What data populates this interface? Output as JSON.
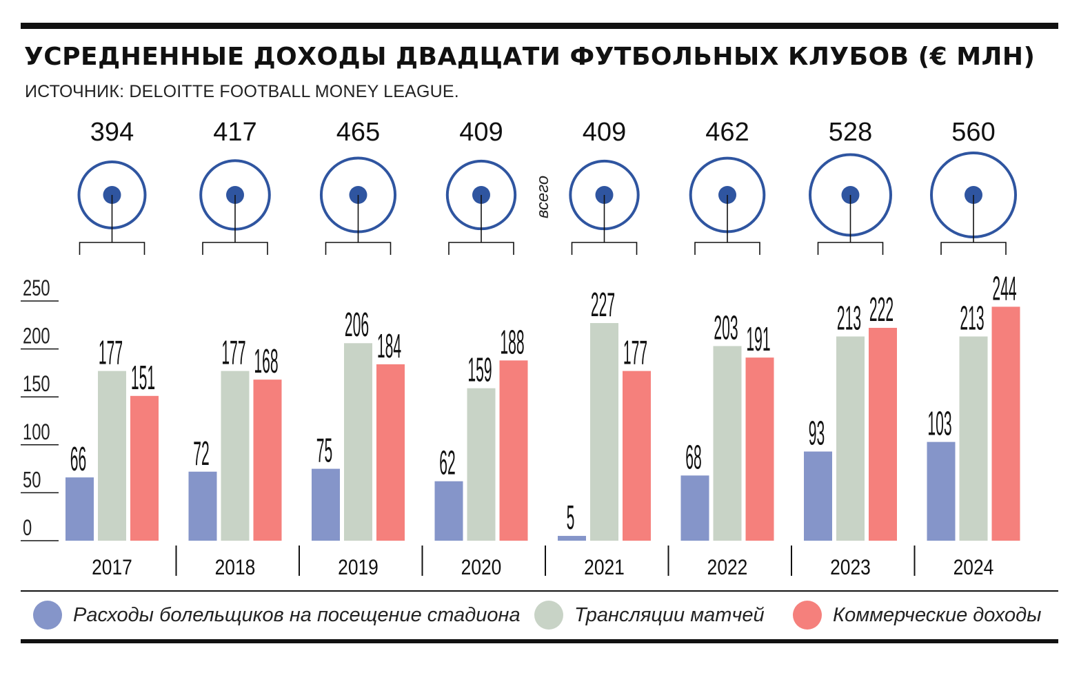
{
  "title": "УСРЕДНЕННЫЕ ДОХОДЫ ДВАДЦАТИ ФУТБОЛЬНЫХ КЛУБОВ (€ МЛН)",
  "source": "ИСТОЧНИК: DELOITTE FOOTBALL MONEY LEAGUE.",
  "total_label": "всего",
  "colors": {
    "stadium": "#8595c9",
    "broadcast": "#c8d3c6",
    "commercial": "#f5807c",
    "total": "#2f55a0",
    "ink": "#111111"
  },
  "legend": [
    {
      "key": "stadium",
      "label": "Расходы болельщиков на посещение стадиона"
    },
    {
      "key": "broadcast",
      "label": "Трансляции матчей"
    },
    {
      "key": "commercial",
      "label": "Коммерческие доходы"
    }
  ],
  "chart_data": {
    "type": "bar",
    "title": "УСРЕДНЕННЫЕ ДОХОДЫ ДВАДЦАТИ ФУТБОЛЬНЫХ КЛУБОВ (€ МЛН)",
    "categories": [
      "2017",
      "2018",
      "2019",
      "2020",
      "2021",
      "2022",
      "2023",
      "2024"
    ],
    "series": [
      {
        "name": "Расходы болельщиков на посещение стадиона",
        "key": "stadium",
        "values": [
          66,
          72,
          75,
          62,
          5,
          68,
          93,
          103
        ]
      },
      {
        "name": "Трансляции матчей",
        "key": "broadcast",
        "values": [
          177,
          177,
          206,
          159,
          227,
          203,
          213,
          213
        ]
      },
      {
        "name": "Коммерческие доходы",
        "key": "commercial",
        "values": [
          151,
          168,
          184,
          188,
          177,
          191,
          222,
          244
        ]
      }
    ],
    "totals": [
      394,
      417,
      465,
      409,
      409,
      462,
      528,
      560
    ],
    "y_ticks": [
      0,
      50,
      100,
      150,
      200,
      250
    ],
    "ylim": [
      0,
      250
    ],
    "legend_position": "bottom",
    "grid": false
  }
}
